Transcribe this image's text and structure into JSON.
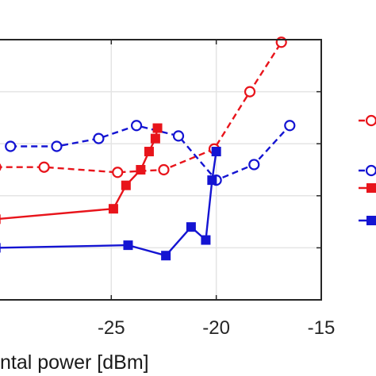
{
  "chart_data": {
    "type": "line",
    "xlabel": "ntal power [dBm]",
    "ylabel": "",
    "title": "",
    "xlim": [
      -30.3,
      -15
    ],
    "ylim": [
      0,
      5
    ],
    "x_ticks": [
      -25,
      -20,
      -15
    ],
    "x_tick_labels": [
      "-25",
      "-20",
      "-15"
    ],
    "y_ticks": [
      1,
      2,
      3,
      4,
      5
    ],
    "grid": true,
    "legend": "right",
    "series": [
      {
        "color": "#e8141b",
        "marker": "circle-open",
        "linestyle": "dashed",
        "x": [
          -30.5,
          -28.2,
          -24.7,
          -22.5,
          -20.1,
          -18.4,
          -16.9
        ],
        "y": [
          2.55,
          2.55,
          2.45,
          2.5,
          2.9,
          4.0,
          4.95
        ]
      },
      {
        "color": "#1414d2",
        "marker": "circle-open",
        "linestyle": "dashed",
        "x": [
          -29.8,
          -27.6,
          -25.6,
          -23.8,
          -21.8,
          -20.0,
          -18.2,
          -16.5
        ],
        "y": [
          2.95,
          2.95,
          3.1,
          3.35,
          3.15,
          2.3,
          2.6,
          3.35
        ]
      },
      {
        "color": "#e8141b",
        "marker": "square-filled",
        "linestyle": "solid",
        "x": [
          -30.5,
          -24.9,
          -24.3,
          -23.6,
          -23.2,
          -22.9,
          -22.8
        ],
        "y": [
          1.55,
          1.75,
          2.2,
          2.5,
          2.85,
          3.1,
          3.3
        ]
      },
      {
        "color": "#1414d2",
        "marker": "square-filled",
        "linestyle": "solid",
        "x": [
          -30.5,
          -24.2,
          -22.4,
          -21.2,
          -20.5,
          -20.2,
          -20.0
        ],
        "y": [
          1.0,
          1.05,
          0.85,
          1.4,
          1.15,
          2.3,
          2.85
        ]
      }
    ]
  }
}
